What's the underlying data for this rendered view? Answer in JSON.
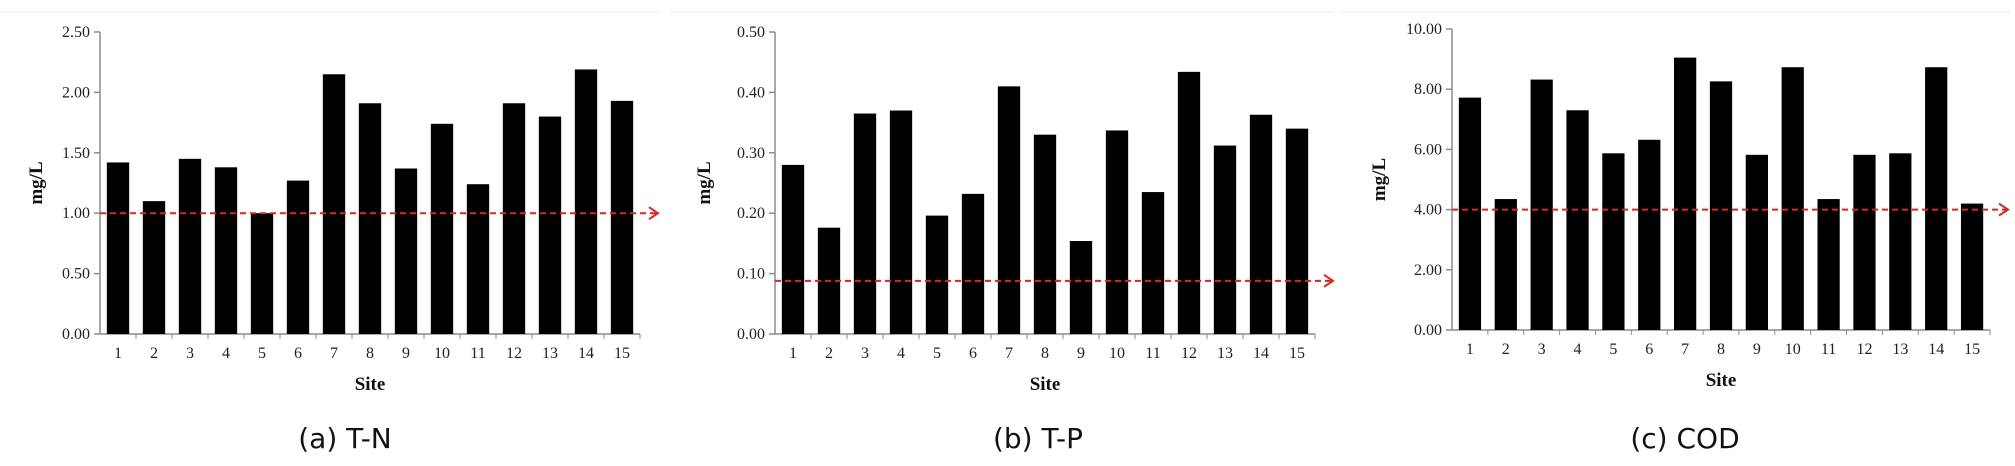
{
  "colors": {
    "bar": "#000000",
    "axis": "#8c8c8c",
    "reference": "#e8201a"
  },
  "chart_data": [
    {
      "type": "bar",
      "caption": "(a) T-N",
      "xlabel": "Site",
      "ylabel": "mg/L",
      "categories": [
        "1",
        "2",
        "3",
        "4",
        "5",
        "6",
        "7",
        "8",
        "9",
        "10",
        "11",
        "12",
        "13",
        "14",
        "15"
      ],
      "values": [
        1.42,
        1.1,
        1.45,
        1.38,
        1.0,
        1.27,
        2.15,
        1.91,
        1.37,
        1.74,
        1.24,
        1.91,
        1.8,
        2.19,
        1.93
      ],
      "ylim": [
        0,
        2.5
      ],
      "yticks": [
        "0.00",
        "0.50",
        "1.00",
        "1.50",
        "2.00",
        "2.50"
      ],
      "reference_line": 1.0,
      "grid": false,
      "legend": "none"
    },
    {
      "type": "bar",
      "caption": "(b) T-P",
      "xlabel": "Site",
      "ylabel": "mg/L",
      "categories": [
        "1",
        "2",
        "3",
        "4",
        "5",
        "6",
        "7",
        "8",
        "9",
        "10",
        "11",
        "12",
        "13",
        "14",
        "15"
      ],
      "values": [
        0.28,
        0.176,
        0.365,
        0.37,
        0.196,
        0.232,
        0.41,
        0.33,
        0.154,
        0.337,
        0.235,
        0.434,
        0.312,
        0.363,
        0.34
      ],
      "ylim": [
        0,
        0.5
      ],
      "yticks": [
        "0.00",
        "0.10",
        "0.20",
        "0.30",
        "0.40",
        "0.50"
      ],
      "reference_line": 0.088,
      "grid": false,
      "legend": "none"
    },
    {
      "type": "bar",
      "caption": "(c) COD",
      "xlabel": "Site",
      "ylabel": "mg/L",
      "categories": [
        "1",
        "2",
        "3",
        "4",
        "5",
        "6",
        "7",
        "8",
        "9",
        "10",
        "11",
        "12",
        "13",
        "14",
        "15"
      ],
      "values": [
        7.72,
        4.35,
        8.32,
        7.3,
        5.87,
        6.32,
        9.05,
        8.26,
        5.82,
        8.73,
        4.35,
        5.82,
        5.87,
        8.73,
        4.2
      ],
      "ylim": [
        0,
        10
      ],
      "yticks": [
        "0.00",
        "2.00",
        "4.00",
        "6.00",
        "8.00",
        "10.00"
      ],
      "reference_line": 4.0,
      "grid": false,
      "legend": "none"
    }
  ]
}
